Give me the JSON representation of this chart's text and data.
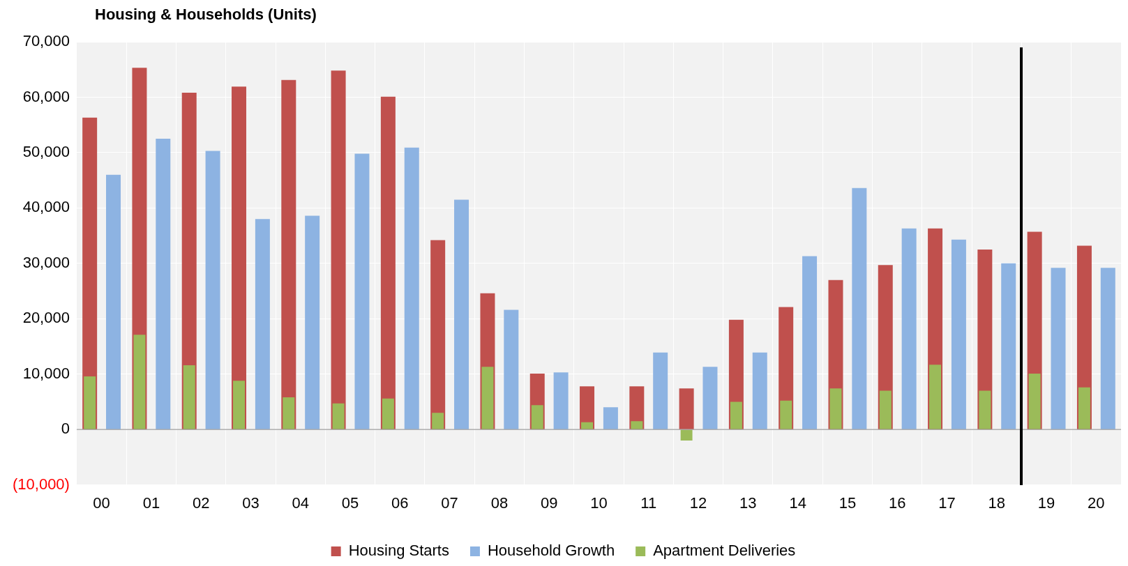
{
  "chart_data": {
    "type": "bar",
    "title": "Housing & Households (Units)",
    "categories": [
      "00",
      "01",
      "02",
      "03",
      "04",
      "05",
      "06",
      "07",
      "08",
      "09",
      "10",
      "11",
      "12",
      "13",
      "14",
      "15",
      "16",
      "17",
      "18",
      "19",
      "20"
    ],
    "series": [
      {
        "name": "Housing Starts",
        "color": "#c0504d",
        "values": [
          56300,
          65300,
          60800,
          61900,
          63100,
          64800,
          60100,
          34200,
          24600,
          10100,
          7800,
          7800,
          7400,
          19800,
          22100,
          27000,
          29700,
          36300,
          32500,
          35700,
          33200
        ]
      },
      {
        "name": "Household Growth",
        "color": "#8db3e2",
        "values": [
          46000,
          52500,
          50300,
          38000,
          38600,
          49800,
          50900,
          41500,
          21600,
          10300,
          4000,
          13900,
          11300,
          13900,
          31300,
          43600,
          36300,
          34300,
          30000,
          29200,
          29200
        ]
      },
      {
        "name": "Apartment Deliveries",
        "color": "#9bbb59",
        "values": [
          9600,
          17100,
          11600,
          8800,
          5800,
          4700,
          5600,
          3000,
          11300,
          4400,
          1300,
          1500,
          -2000,
          5000,
          5200,
          7400,
          7000,
          11700,
          7000,
          10100,
          7600
        ]
      }
    ],
    "ylim": [
      -10000,
      70000
    ],
    "yticks": [
      {
        "value": -10000,
        "label": "(10,000)"
      },
      {
        "value": 0,
        "label": "0"
      },
      {
        "value": 10000,
        "label": "10,000"
      },
      {
        "value": 20000,
        "label": "20,000"
      },
      {
        "value": 30000,
        "label": "30,000"
      },
      {
        "value": 40000,
        "label": "40,000"
      },
      {
        "value": 50000,
        "label": "50,000"
      },
      {
        "value": 60000,
        "label": "60,000"
      },
      {
        "value": 70000,
        "label": "70,000"
      }
    ],
    "grid": true,
    "legend": "bottom"
  }
}
